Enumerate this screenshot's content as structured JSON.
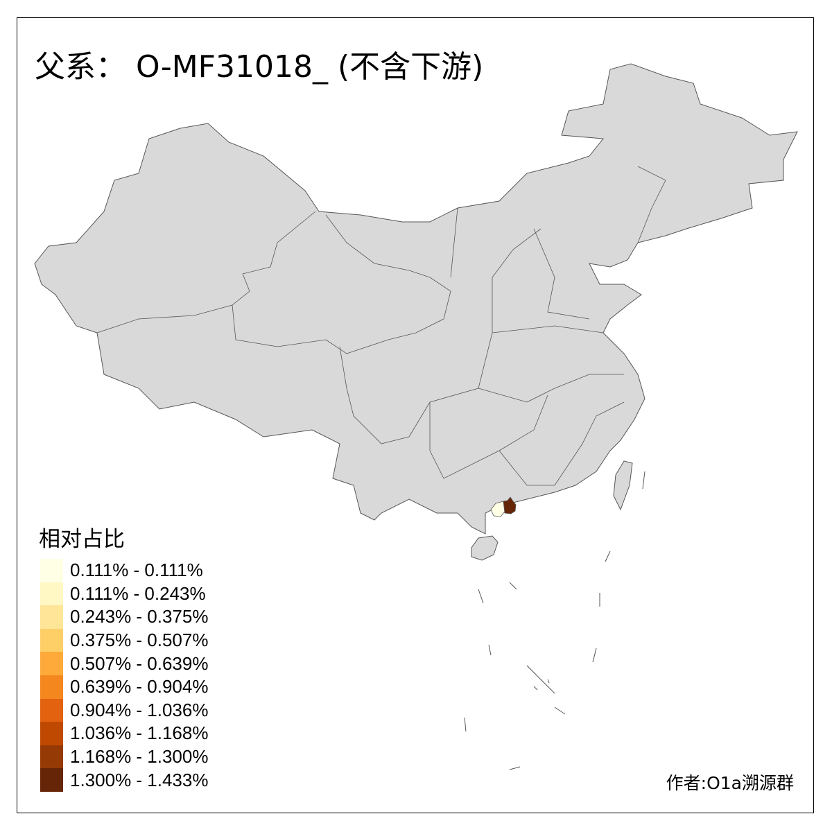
{
  "title": "父系： O-MF31018_ (不含下游)",
  "map": {
    "base_fill": "#D9D9D9",
    "border_color": "#555555",
    "highlighted_regions": [
      {
        "bin_index": 0,
        "color": "#FFFFE5"
      },
      {
        "bin_index": 9,
        "color": "#662506"
      }
    ]
  },
  "legend": {
    "title": "相对占比",
    "items": [
      {
        "label": "0.111% - 0.111%",
        "color": "#FFFFE5"
      },
      {
        "label": "0.111% - 0.243%",
        "color": "#FFF7C4"
      },
      {
        "label": "0.243% - 0.375%",
        "color": "#FEE597"
      },
      {
        "label": "0.375% - 0.507%",
        "color": "#FECF66"
      },
      {
        "label": "0.507% - 0.639%",
        "color": "#FEAA3A"
      },
      {
        "label": "0.639% - 0.904%",
        "color": "#F5871F"
      },
      {
        "label": "0.904% - 1.036%",
        "color": "#E2620F"
      },
      {
        "label": "1.036% - 1.168%",
        "color": "#C04902"
      },
      {
        "label": "1.168% - 1.300%",
        "color": "#963A05"
      },
      {
        "label": "1.300% - 1.433%",
        "color": "#662506"
      }
    ]
  },
  "credit": "作者:O1a溯源群"
}
